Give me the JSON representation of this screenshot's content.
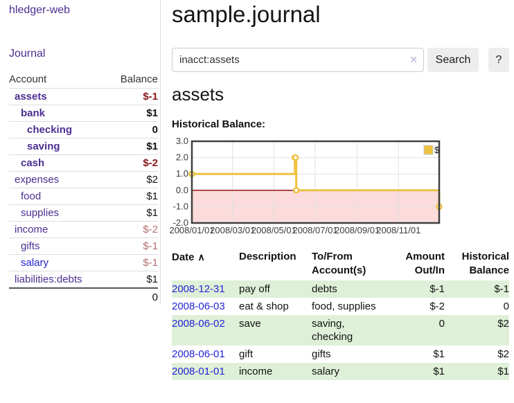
{
  "app": {
    "name": "hledger-web"
  },
  "sidebar": {
    "journal_link": "Journal",
    "accounts": {
      "headers": {
        "account": "Account",
        "balance": "Balance"
      },
      "rows": [
        {
          "name": "assets",
          "balance": "$-1",
          "level": 1,
          "bold": true,
          "balance_tone": "negative-strong",
          "link_tone": "purple"
        },
        {
          "name": "bank",
          "balance": "$1",
          "level": 2,
          "bold": true,
          "balance_tone": "normal",
          "link_tone": "purple"
        },
        {
          "name": "checking",
          "balance": "0",
          "level": 3,
          "bold": true,
          "balance_tone": "normal",
          "link_tone": "purple"
        },
        {
          "name": "saving",
          "balance": "$1",
          "level": 3,
          "bold": true,
          "balance_tone": "normal",
          "link_tone": "purple"
        },
        {
          "name": "cash",
          "balance": "$-2",
          "level": 2,
          "bold": true,
          "balance_tone": "negative-strong",
          "link_tone": "purple"
        },
        {
          "name": "expenses",
          "balance": "$2",
          "level": 1,
          "bold": false,
          "balance_tone": "normal",
          "link_tone": "purple"
        },
        {
          "name": "food",
          "balance": "$1",
          "level": 2,
          "bold": false,
          "balance_tone": "normal",
          "link_tone": "purple"
        },
        {
          "name": "supplies",
          "balance": "$1",
          "level": 2,
          "bold": false,
          "balance_tone": "normal",
          "link_tone": "purple"
        },
        {
          "name": "income",
          "balance": "$-2",
          "level": 1,
          "bold": false,
          "balance_tone": "negative-soft",
          "link_tone": "purple"
        },
        {
          "name": "gifts",
          "balance": "$-1",
          "level": 2,
          "bold": false,
          "balance_tone": "negative-soft",
          "link_tone": "purple"
        },
        {
          "name": "salary",
          "balance": "$-1",
          "level": 2,
          "bold": false,
          "balance_tone": "negative-soft",
          "link_tone": "blue"
        },
        {
          "name": "liabilities:debts",
          "balance": "$1",
          "level": 1,
          "bold": false,
          "balance_tone": "normal",
          "link_tone": "purple"
        }
      ],
      "total": "0"
    }
  },
  "main": {
    "title": "sample.journal",
    "search": {
      "value": "inacct:assets",
      "clear_icon": "✕",
      "search_button": "Search",
      "help_button": "?"
    },
    "account_heading": "assets",
    "chart_title": "Historical Balance:"
  },
  "register": {
    "headers": {
      "date": "Date",
      "sort_icon": "∧",
      "description": "Description",
      "accounts": "To/From Account(s)",
      "amount": "Amount Out/In",
      "balance": "Historical Balance"
    },
    "rows": [
      {
        "date": "2008-12-31",
        "description": "pay off",
        "accounts": "debts",
        "amount": "$-1",
        "balance": "$-1",
        "amount_negative": true,
        "balance_negative": true,
        "shaded": true
      },
      {
        "date": "2008-06-03",
        "description": "eat & shop",
        "accounts": "food, supplies",
        "amount": "$-2",
        "balance": "0",
        "amount_negative": true,
        "balance_negative": false,
        "shaded": false
      },
      {
        "date": "2008-06-02",
        "description": "save",
        "accounts": "saving, checking",
        "amount": "0",
        "balance": "$2",
        "amount_negative": false,
        "balance_negative": false,
        "shaded": true
      },
      {
        "date": "2008-06-01",
        "description": "gift",
        "accounts": "gifts",
        "amount": "$1",
        "balance": "$2",
        "amount_negative": false,
        "balance_negative": false,
        "shaded": false
      },
      {
        "date": "2008-01-01",
        "description": "income",
        "accounts": "salary",
        "amount": "$1",
        "balance": "$1",
        "amount_negative": false,
        "balance_negative": false,
        "shaded": true
      }
    ]
  },
  "chart_data": {
    "type": "line",
    "step": true,
    "title": "Historical Balance:",
    "x_min": "2008-01-01",
    "x_max": "2008-12-31",
    "ylim": [
      -2,
      3
    ],
    "yticks": [
      {
        "value": 3,
        "label": "3.0"
      },
      {
        "value": 2,
        "label": "2.0"
      },
      {
        "value": 1,
        "label": "1.0"
      },
      {
        "value": 0,
        "label": "0.0"
      },
      {
        "value": -1,
        "label": "-1.0"
      },
      {
        "value": -2,
        "label": "-2.0"
      }
    ],
    "xticks": [
      {
        "value": "2008-01-01",
        "label": "2008/01/01"
      },
      {
        "value": "2008-03-01",
        "label": "2008/03/01"
      },
      {
        "value": "2008-05-01",
        "label": "2008/05/01"
      },
      {
        "value": "2008-07-01",
        "label": "2008/07/01"
      },
      {
        "value": "2008-09-01",
        "label": "2008/09/01"
      },
      {
        "value": "2008-11-01",
        "label": "2008/11/01"
      }
    ],
    "series": [
      {
        "name": "$",
        "points": [
          [
            "2008-01-01",
            1
          ],
          [
            "2008-06-01",
            2
          ],
          [
            "2008-06-02",
            2
          ],
          [
            "2008-06-03",
            0
          ],
          [
            "2008-12-31",
            -1
          ]
        ]
      }
    ],
    "legend": {
      "label": "$",
      "position": "top-right"
    },
    "grid": true,
    "colors": {
      "line": "#edc240",
      "marker_fill": "#ffffff",
      "negative_region": "#fbdbdb",
      "zero_line": "#8b0000",
      "grid": "#e0e0e0",
      "border": "#3f3f3f",
      "tick_text": "#3a3a3a"
    }
  },
  "colors": {
    "purple_link": "#4b2e91",
    "blue_link": "#2323d5",
    "negative_strong": "#871717",
    "negative_soft": "#b36f6f",
    "row_shade_green": "#dff0d8",
    "button_bg": "#ededed"
  }
}
